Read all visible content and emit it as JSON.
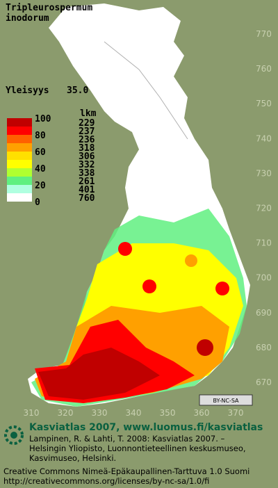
{
  "header": {
    "title_line1": "Tripleurospermum",
    "title_line2": "inodorum",
    "frequency_label": "Yleisyys",
    "frequency_value": "35.0"
  },
  "legend": {
    "count_header": "lkm",
    "scale_labels": [
      100,
      80,
      60,
      40,
      20,
      0
    ],
    "counts": [
      229,
      237,
      236,
      318,
      306,
      332,
      338,
      261,
      401,
      760
    ],
    "colors": [
      "#c00000",
      "#ff0000",
      "#ff6000",
      "#ffa000",
      "#ffe000",
      "#ffff00",
      "#b0ff30",
      "#60f080",
      "#b0ffe0",
      "#ffffff"
    ]
  },
  "grid": {
    "y_labels": [
      770,
      760,
      750,
      740,
      730,
      720,
      710,
      700,
      690,
      680,
      670
    ],
    "x_labels": [
      310,
      320,
      330,
      340,
      350,
      360,
      370
    ]
  },
  "license_badge": "BY-NC-SA",
  "footer": {
    "site": "Kasviatlas 2007, www.luomus.fi/kasviatlas",
    "citation_line1": "Lampinen, R. & Lahti, T. 2008: Kasviatlas 2007. –",
    "citation_line2": "Helsingin Yliopisto, Luonnontieteellinen keskusmuseo,",
    "citation_line3": "Kasvimuseo, Helsinki.",
    "license_line1": "Creative Commons Nimeä-Epäkaupallinen-Tarttuva 1.0 Suomi",
    "license_line2": "http://creativecommons.org/licenses/by-nc-sa/1.0/fi"
  }
}
